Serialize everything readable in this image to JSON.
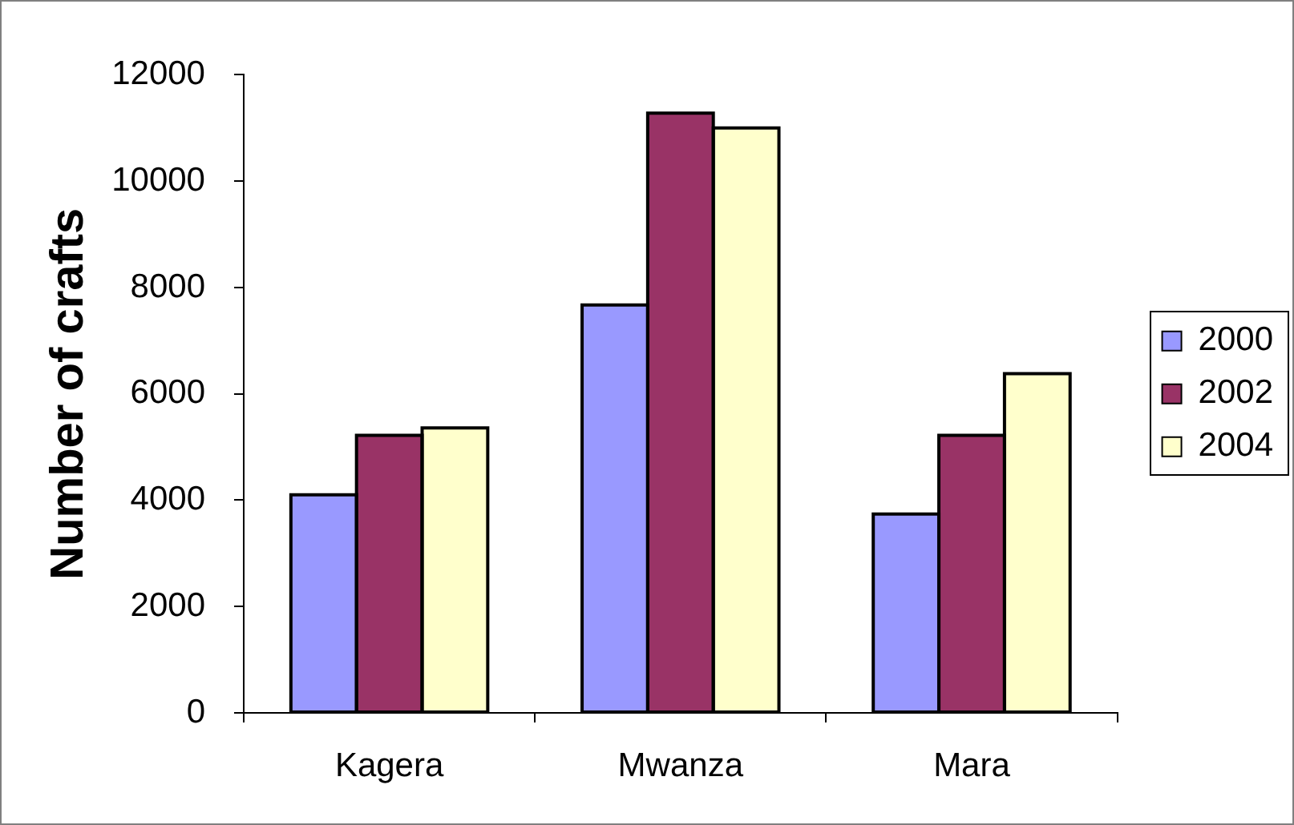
{
  "chart_data": {
    "type": "bar",
    "categories": [
      "Kagera",
      "Mwanza",
      "Mara"
    ],
    "ylabel": "Number of crafts",
    "series": [
      {
        "name": "2000",
        "color": "#9999ff",
        "values": [
          4100,
          7670,
          3740
        ]
      },
      {
        "name": "2002",
        "color": "#993366",
        "values": [
          5220,
          11280,
          5220
        ]
      },
      {
        "name": "2004",
        "color": "#ffffcc",
        "values": [
          5360,
          11000,
          6380
        ]
      }
    ],
    "ylim": [
      0,
      12000
    ],
    "yticks": [
      0,
      2000,
      4000,
      6000,
      8000,
      10000,
      12000
    ],
    "grid": false,
    "legend": "right"
  }
}
